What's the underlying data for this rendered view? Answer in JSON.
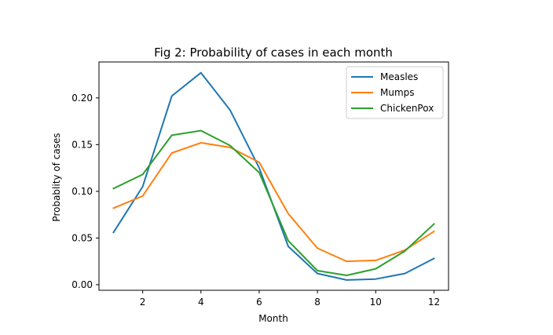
{
  "chart_data": {
    "type": "line",
    "title": "Fig 2: Probability of cases in each month",
    "xlabel": "Month",
    "ylabel": "Probablity of cases",
    "x": [
      1,
      2,
      3,
      4,
      5,
      6,
      7,
      8,
      9,
      10,
      11,
      12
    ],
    "xlim": [
      0.5,
      12.5
    ],
    "ylim": [
      -0.006,
      0.2385
    ],
    "xticks": [
      2,
      4,
      6,
      8,
      10,
      12
    ],
    "xtick_labels": [
      "2",
      "4",
      "6",
      "8",
      "10",
      "12"
    ],
    "yticks": [
      0.0,
      0.05,
      0.1,
      0.15,
      0.2
    ],
    "ytick_labels": [
      "0.00",
      "0.05",
      "0.10",
      "0.15",
      "0.20"
    ],
    "grid": false,
    "legend_position": "top-right",
    "series": [
      {
        "name": "Measles",
        "color": "#1f77b4",
        "values": [
          0.056,
          0.105,
          0.202,
          0.227,
          0.187,
          0.125,
          0.041,
          0.012,
          0.005,
          0.006,
          0.012,
          0.028
        ]
      },
      {
        "name": "Mumps",
        "color": "#ff7f0e",
        "values": [
          0.082,
          0.095,
          0.141,
          0.152,
          0.147,
          0.131,
          0.076,
          0.039,
          0.025,
          0.026,
          0.037,
          0.057
        ]
      },
      {
        "name": "ChickenPox",
        "color": "#2ca02c",
        "values": [
          0.103,
          0.118,
          0.16,
          0.165,
          0.149,
          0.12,
          0.047,
          0.015,
          0.01,
          0.017,
          0.036,
          0.065
        ]
      }
    ]
  }
}
